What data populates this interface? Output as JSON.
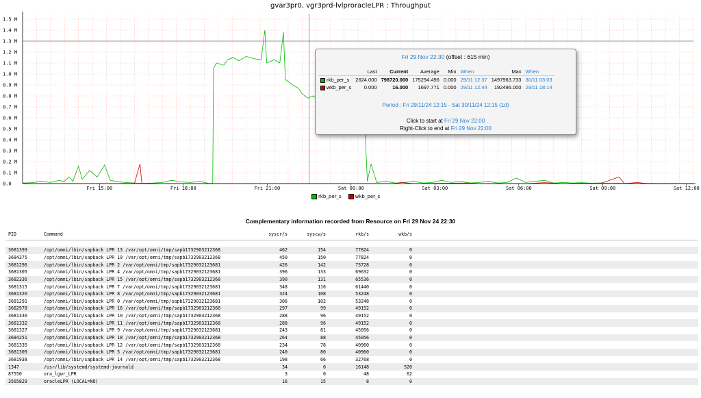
{
  "page_title": "gvar3pr0, vgr3prd-lvlproracleLPR : Throughput",
  "chart_data": {
    "type": "line",
    "title": "gvar3pr0, vgr3prd-lvlproracleLPR : Throughput",
    "y_ticks": [
      "0.0",
      "0.1 M",
      "0.2 M",
      "0.3 M",
      "0.4 M",
      "0.5 M",
      "0.6 M",
      "0.7 M",
      "0.8 M",
      "0.9 M",
      "1.0 M",
      "1.1 M",
      "1.2 M",
      "1.3 M",
      "1.4 M",
      "1.5 M"
    ],
    "x_ticks": [
      "Fri 15:00",
      "Fri 18:00",
      "Fri 21:00",
      "Sat 00:00",
      "Sat 03:00",
      "Sat 06:00",
      "Sat 09:00",
      "Sat 12:00"
    ],
    "ylim": [
      0,
      1550000
    ],
    "x_range_hours": [
      "Fri 12:15",
      "Sat 12:15"
    ],
    "grid": true,
    "reference_line_y": 1300000,
    "cursor_time": "Fri 22:30",
    "legend_position": "bottom",
    "series": [
      {
        "name": "rkb_per_s",
        "color": "#00bb00",
        "points": [
          [
            0,
            5000
          ],
          [
            0.5,
            8000
          ],
          [
            1,
            20000
          ],
          [
            1.5,
            10000
          ],
          [
            2,
            30000
          ],
          [
            2.2,
            15000
          ],
          [
            2.5,
            60000
          ],
          [
            2.7,
            20000
          ],
          [
            3,
            160000
          ],
          [
            3.2,
            40000
          ],
          [
            3.6,
            120000
          ],
          [
            4,
            60000
          ],
          [
            4.4,
            170000
          ],
          [
            4.7,
            30000
          ],
          [
            5,
            20000
          ],
          [
            5.5,
            10000
          ],
          [
            6,
            5000
          ],
          [
            6.5,
            3000
          ],
          [
            7,
            5000
          ],
          [
            7.5,
            10000
          ],
          [
            8,
            30000
          ],
          [
            8.5,
            15000
          ],
          [
            9,
            10000
          ],
          [
            9.5,
            20000
          ],
          [
            10,
            1000
          ],
          [
            10.2,
            1000
          ],
          [
            10.25,
            1050000
          ],
          [
            10.4,
            1100000
          ],
          [
            10.8,
            1080000
          ],
          [
            11,
            1130000
          ],
          [
            11.3,
            1150000
          ],
          [
            11.6,
            1120000
          ],
          [
            12,
            1160000
          ],
          [
            12.4,
            1140000
          ],
          [
            12.8,
            1130000
          ],
          [
            13.0,
            1400000
          ],
          [
            13.1,
            1100000
          ],
          [
            13.5,
            1130000
          ],
          [
            13.8,
            1100000
          ],
          [
            14.0,
            1380000
          ],
          [
            14.1,
            950000
          ],
          [
            14.5,
            900000
          ],
          [
            14.8,
            870000
          ],
          [
            15,
            820000
          ],
          [
            15.3,
            780000
          ],
          [
            15.6,
            800000
          ],
          [
            15.9,
            750000
          ],
          [
            16.2,
            720000
          ],
          [
            16.5,
            790000
          ],
          [
            16.8,
            780000
          ],
          [
            17.2,
            800000
          ],
          [
            17.5,
            850000
          ],
          [
            17.8,
            900000
          ],
          [
            18,
            1000000
          ],
          [
            18.2,
            800000
          ],
          [
            18.3,
            1200000
          ],
          [
            18.4,
            400000
          ],
          [
            18.5,
            20000
          ],
          [
            18.7,
            180000
          ],
          [
            19,
            10000
          ],
          [
            19.5,
            20000
          ],
          [
            20,
            5000
          ],
          [
            20.5,
            10000
          ],
          [
            21,
            20000
          ],
          [
            21.5,
            5000
          ],
          [
            22,
            10000
          ],
          [
            22.5,
            30000
          ],
          [
            23,
            10000
          ],
          [
            23.5,
            20000
          ],
          [
            24,
            5000
          ],
          [
            24.5,
            10000
          ],
          [
            25,
            20000
          ],
          [
            25.5,
            5000
          ],
          [
            26,
            10000
          ],
          [
            26.5,
            50000
          ],
          [
            27,
            10000
          ],
          [
            27.5,
            20000
          ],
          [
            28,
            30000
          ],
          [
            28.5,
            5000
          ],
          [
            29,
            10000
          ],
          [
            29.5,
            5000
          ],
          [
            30,
            8000
          ],
          [
            30.5,
            4000
          ],
          [
            31,
            6000
          ],
          [
            31.5,
            2000
          ],
          [
            32,
            3000
          ],
          [
            32.5,
            2000
          ],
          [
            33,
            1000
          ],
          [
            33.5,
            2000
          ],
          [
            34,
            1000
          ],
          [
            34.5,
            1000
          ],
          [
            35,
            1000
          ],
          [
            35.5,
            500
          ],
          [
            36,
            1000
          ]
        ]
      },
      {
        "name": "wkb_per_s",
        "color": "#cc0000",
        "points": [
          [
            0,
            0
          ],
          [
            5,
            0
          ],
          [
            5.5,
            2000
          ],
          [
            6,
            0
          ],
          [
            6.3,
            180000
          ],
          [
            6.4,
            0
          ],
          [
            7,
            0
          ],
          [
            12,
            0
          ],
          [
            18,
            0
          ],
          [
            20,
            0
          ],
          [
            20.3,
            10000
          ],
          [
            21,
            0
          ],
          [
            24,
            5000
          ],
          [
            24.5,
            0
          ],
          [
            27,
            0
          ],
          [
            28,
            8000
          ],
          [
            29,
            0
          ],
          [
            30,
            3000
          ],
          [
            31,
            0
          ],
          [
            32,
            60000
          ],
          [
            32.3,
            0
          ],
          [
            33,
            10000
          ],
          [
            33.5,
            0
          ],
          [
            36,
            0
          ]
        ]
      }
    ]
  },
  "legend": [
    {
      "label": "rkb_per_s",
      "color": "#00bb00"
    },
    {
      "label": "wkb_per_s",
      "color": "#cc0000"
    }
  ],
  "tooltip": {
    "date_label": "Fri 29 Nov 22:30",
    "offset_text": "(offset : 615 min)",
    "headers": {
      "last": "Last",
      "current": "Current",
      "average": "Average",
      "min": "Min",
      "when": "When",
      "max": "Max",
      "when2": "When"
    },
    "rows": [
      {
        "name": "rkb_per_s",
        "color": "#00bb00",
        "last": "2624.000",
        "current": "798720.000",
        "average": "175294.496",
        "min": "0.000",
        "min_when": "29/11 12:37",
        "max": "1497963.733",
        "max_when": "30/11 03:03"
      },
      {
        "name": "wkb_per_s",
        "color": "#cc0000",
        "last": "0.000",
        "current": "16.000",
        "average": "1697.771",
        "min": "0.000",
        "min_when": "29/11 12:44",
        "max": "192496.000",
        "max_when": "29/11 18:14"
      }
    ],
    "period": "Period : Fri 29/11/24 12:15 - Sat 30/11/24 12:15 (1d)",
    "click_start_prefix": "Click to start at",
    "click_start_date": "Fri 29 Nov 22:00",
    "click_end_prefix": "Right-Click to end at",
    "click_end_date": "Fri 29 Nov 22:00"
  },
  "complementary_title": "Complementary information recorded from Resource on Fri 29 Nov 24 22:30",
  "table": {
    "headers": {
      "pid": "PID",
      "command": "Command",
      "syscr": "syscr/s",
      "syscw": "syscw/s",
      "rkb": "rkb/s",
      "wkb": "wkb/s"
    },
    "rows": [
      {
        "pid": "3681399",
        "command": "/opt/omni/lbin/sapback LPR 13 /var/opt/omni/tmp/sapb1732903212368",
        "syscr": "462",
        "syscw": "154",
        "rkb": "77824",
        "wkb": "0"
      },
      {
        "pid": "3684375",
        "command": "/opt/omni/lbin/sapback LPR 19 /var/opt/omni/tmp/sapb1732903212368",
        "syscr": "450",
        "syscw": "150",
        "rkb": "77824",
        "wkb": "0"
      },
      {
        "pid": "3681296",
        "command": "/opt/omni/lbin/sapback LPR 2 /var/opt/omni/tmp/sapb17329032123681",
        "syscr": "426",
        "syscw": "142",
        "rkb": "73728",
        "wkb": "0"
      },
      {
        "pid": "3681305",
        "command": "/opt/omni/lbin/sapback LPR 4 /var/opt/omni/tmp/sapb17329032123681",
        "syscr": "396",
        "syscw": "133",
        "rkb": "69632",
        "wkb": "0"
      },
      {
        "pid": "3682336",
        "command": "/opt/omni/lbin/sapback LPR 15 /var/opt/omni/tmp/sapb1732903212368",
        "syscr": "390",
        "syscw": "131",
        "rkb": "65536",
        "wkb": "0"
      },
      {
        "pid": "3681315",
        "command": "/opt/omni/lbin/sapback LPR 7 /var/opt/omni/tmp/sapb17329032123681",
        "syscr": "348",
        "syscw": "116",
        "rkb": "61440",
        "wkb": "0"
      },
      {
        "pid": "3681320",
        "command": "/opt/omni/lbin/sapback LPR 8 /var/opt/omni/tmp/sapb17329032123681",
        "syscr": "324",
        "syscw": "108",
        "rkb": "53248",
        "wkb": "0"
      },
      {
        "pid": "3681291",
        "command": "/opt/omni/lbin/sapback LPR 0 /var/opt/omni/tmp/sapb17329032123681",
        "syscr": "306",
        "syscw": "102",
        "rkb": "53248",
        "wkb": "0"
      },
      {
        "pid": "3682978",
        "command": "/opt/omni/lbin/sapback LPR 16 /var/opt/omni/tmp/sapb1732903212368",
        "syscr": "297",
        "syscw": "99",
        "rkb": "49152",
        "wkb": "0"
      },
      {
        "pid": "3681330",
        "command": "/opt/omni/lbin/sapback LPR 10 /var/opt/omni/tmp/sapb1732903212368",
        "syscr": "288",
        "syscw": "96",
        "rkb": "49152",
        "wkb": "0"
      },
      {
        "pid": "3681332",
        "command": "/opt/omni/lbin/sapback LPR 11 /var/opt/omni/tmp/sapb1732903212368",
        "syscr": "288",
        "syscw": "96",
        "rkb": "49152",
        "wkb": "0"
      },
      {
        "pid": "3681327",
        "command": "/opt/omni/lbin/sapback LPR 9 /var/opt/omni/tmp/sapb17329032123681",
        "syscr": "243",
        "syscw": "81",
        "rkb": "45056",
        "wkb": "0"
      },
      {
        "pid": "3684251",
        "command": "/opt/omni/lbin/sapback LPR 18 /var/opt/omni/tmp/sapb1732903212368",
        "syscr": "264",
        "syscw": "88",
        "rkb": "45056",
        "wkb": "0"
      },
      {
        "pid": "3681335",
        "command": "/opt/omni/lbin/sapback LPR 12 /var/opt/omni/tmp/sapb1732903212368",
        "syscr": "234",
        "syscw": "78",
        "rkb": "40960",
        "wkb": "0"
      },
      {
        "pid": "3681309",
        "command": "/opt/omni/lbin/sapback LPR 5 /var/opt/omni/tmp/sapb17329032123681",
        "syscr": "240",
        "syscw": "80",
        "rkb": "40960",
        "wkb": "0"
      },
      {
        "pid": "3681938",
        "command": "/opt/omni/lbin/sapback LPR 14 /var/opt/omni/tmp/sapb1732903212368",
        "syscr": "198",
        "syscw": "66",
        "rkb": "32768",
        "wkb": "0"
      },
      {
        "pid": "1347",
        "command": "/usr/lib/systemd/systemd-journald",
        "syscr": "34",
        "syscw": "0",
        "rkb": "16148",
        "wkb": "520"
      },
      {
        "pid": "87550",
        "command": "ora_lgwr_LPR",
        "syscr": "3",
        "syscw": "0",
        "rkb": "48",
        "wkb": "62"
      },
      {
        "pid": "3565829",
        "command": "oracleLPR (LOCAL=NO)",
        "syscr": "16",
        "syscw": "15",
        "rkb": "8",
        "wkb": "0"
      }
    ]
  }
}
